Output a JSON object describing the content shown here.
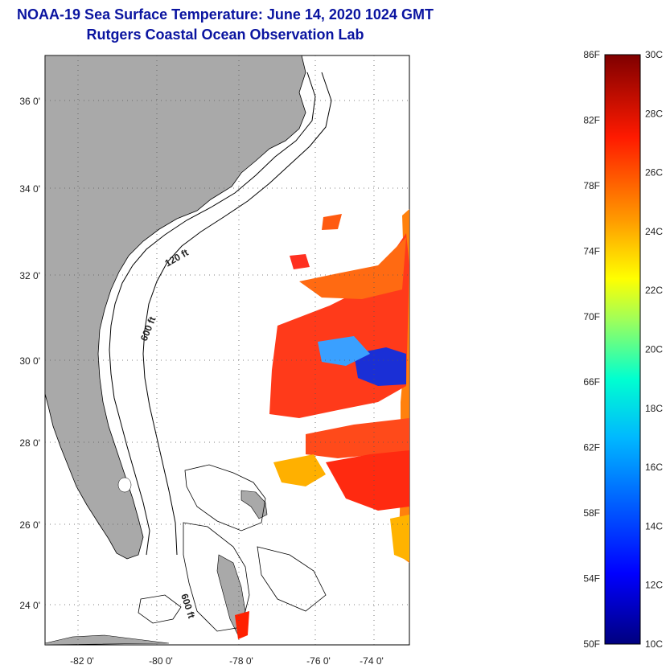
{
  "header": {
    "title": "NOAA-19 Sea Surface Temperature:  June 14, 2020 1024 GMT",
    "subtitle": "Rutgers Coastal Ocean Observation Lab"
  },
  "map": {
    "lat_labels": [
      "36 0'",
      "34 0'",
      "32 0'",
      "30 0'",
      "28 0'",
      "26 0'",
      "24 0'"
    ],
    "lon_labels": [
      "-82 0'",
      "-80 0'",
      "-78 0'",
      "-76 0'",
      "-74 0'"
    ],
    "contour_labels": [
      "120 ft",
      "600 ft",
      "600 ft"
    ],
    "land_color": "#a9a9a9"
  },
  "colorbar": {
    "fahrenheit": [
      "86F",
      "82F",
      "78F",
      "74F",
      "70F",
      "66F",
      "62F",
      "58F",
      "54F",
      "50F"
    ],
    "celsius": [
      "30C",
      "28C",
      "26C",
      "24C",
      "22C",
      "20C",
      "18C",
      "16C",
      "14C",
      "12C",
      "10C"
    ],
    "colors": [
      "#00007f",
      "#0000ff",
      "#007fff",
      "#00ffff",
      "#7fff7f",
      "#ffff00",
      "#ff7f00",
      "#ff0000",
      "#7f0000"
    ]
  }
}
